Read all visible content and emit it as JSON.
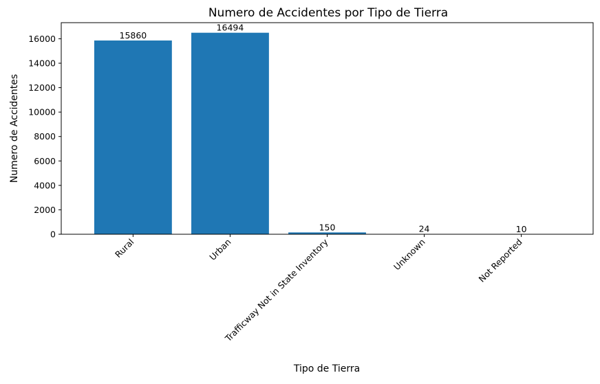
{
  "chart_data": {
    "type": "bar",
    "title": "Numero de Accidentes por Tipo de Tierra",
    "xlabel": "Tipo de Tierra",
    "ylabel": "Numero de Accidentes",
    "categories": [
      "Rural",
      "Urban",
      "Trafficway Not in State Inventory",
      "Unknown",
      "Not Reported"
    ],
    "values": [
      15860,
      16494,
      150,
      24,
      10
    ],
    "data_labels": [
      "15860",
      "16494",
      "150",
      "24",
      "10"
    ],
    "ylim": [
      0,
      17318.7
    ],
    "yticks": [
      0,
      2000,
      4000,
      6000,
      8000,
      10000,
      12000,
      14000,
      16000
    ],
    "ytick_labels": [
      "0",
      "2000",
      "4000",
      "6000",
      "8000",
      "10000",
      "12000",
      "14000",
      "16000"
    ],
    "grid": false,
    "legend": "none",
    "bar_color": "#1f77b4"
  }
}
